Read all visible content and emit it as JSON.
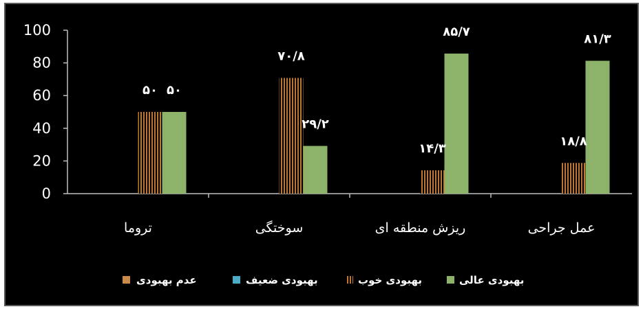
{
  "chart_data": {
    "type": "bar",
    "title": "",
    "xlabel": "",
    "ylabel": "",
    "ylim": [
      0,
      100
    ],
    "yticks": [
      "0",
      "20",
      "40",
      "60",
      "80",
      "100"
    ],
    "categories": [
      "تروما",
      "سوختگی",
      "ریزش منطقه ای",
      "عمل جراحی"
    ],
    "series": [
      {
        "name": "عدم بهبودی",
        "values": [
          0,
          0,
          0,
          0
        ],
        "labels": [
          "",
          "",
          "",
          ""
        ],
        "color": "#c98a4a",
        "pattern": "solid"
      },
      {
        "name": "بهبودی ضعیف",
        "values": [
          0,
          0,
          0,
          0
        ],
        "labels": [
          "",
          "",
          "",
          ""
        ],
        "color": "#4bacc6",
        "pattern": "solid"
      },
      {
        "name": "بهبودی خوب",
        "values": [
          50,
          70.8,
          14.3,
          18.8
        ],
        "labels": [
          "۵۰",
          "۷۰/۸",
          "۱۴/۳",
          "۱۸/۸"
        ],
        "color": "#c07830",
        "pattern": "vertical-stripes"
      },
      {
        "name": "بهبودی عالی",
        "values": [
          50,
          29.2,
          85.7,
          81.3
        ],
        "labels": [
          "۵۰",
          "۲۹/۲",
          "۸۵/۷",
          "۸۱/۳"
        ],
        "color": "#8db36a",
        "pattern": "solid"
      }
    ],
    "grid": false,
    "legend": "bottom",
    "background": "#000000",
    "text_color": "#ffffff"
  }
}
